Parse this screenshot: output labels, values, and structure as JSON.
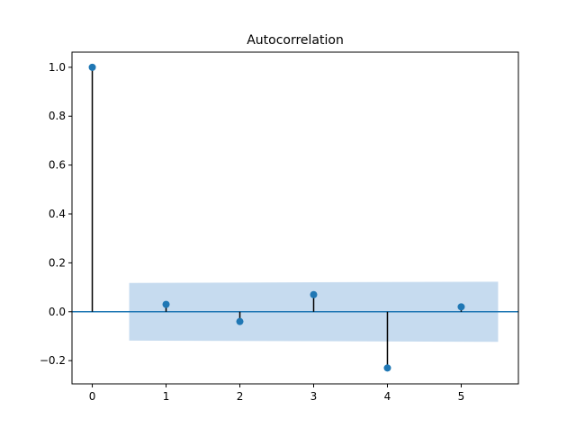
{
  "chart_data": {
    "type": "stem",
    "title": "Autocorrelation",
    "xlabel": "",
    "ylabel": "",
    "xlim": [
      -0.275,
      5.775
    ],
    "ylim": [
      -0.295,
      1.062
    ],
    "xticks": [
      0,
      1,
      2,
      3,
      4,
      5
    ],
    "yticks": [
      -0.2,
      0.0,
      0.2,
      0.4,
      0.6,
      0.8,
      1.0
    ],
    "xtick_labels": [
      "0",
      "1",
      "2",
      "3",
      "4",
      "5"
    ],
    "ytick_labels": [
      "−0.2",
      "0.0",
      "0.2",
      "0.4",
      "0.6",
      "0.8",
      "1.0"
    ],
    "grid": false,
    "legend": "none",
    "x": [
      0,
      1,
      2,
      3,
      4,
      5
    ],
    "values": [
      1.0,
      0.03,
      -0.04,
      0.07,
      -0.23,
      0.02
    ],
    "confidence_band": {
      "x": [
        0.5,
        5.5
      ],
      "upper": [
        0.118,
        0.123
      ],
      "lower": [
        -0.118,
        -0.123
      ]
    },
    "colors": {
      "marker": "#1f77b4",
      "stem": "#000000",
      "zero_line": "#1f77b4",
      "band": "#c6dbef"
    }
  }
}
